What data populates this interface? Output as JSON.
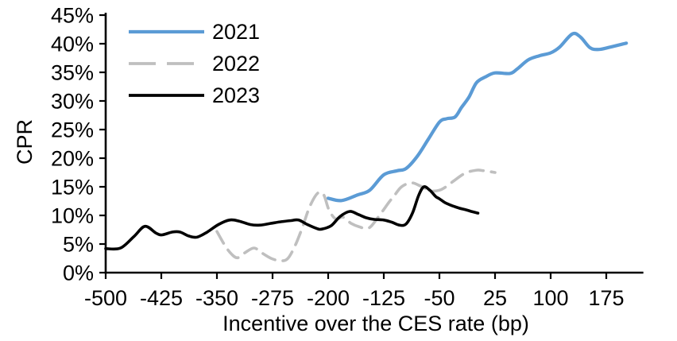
{
  "chart_data": {
    "type": "line",
    "title": "",
    "xlabel": "Incentive over the CES rate (bp)",
    "ylabel": "CPR",
    "xlim": [
      -500,
      225
    ],
    "ylim": [
      0,
      45
    ],
    "grid": false,
    "legend_position": "top-left-inside",
    "x_ticks": [
      -500,
      -425,
      -350,
      -275,
      -200,
      -125,
      -50,
      25,
      100,
      175
    ],
    "x_tick_labels": [
      "-500",
      "-425",
      "-350",
      "-275",
      "-200",
      "-125",
      "-50",
      "25",
      "100",
      "175"
    ],
    "y_ticks": [
      0,
      5,
      10,
      15,
      20,
      25,
      30,
      35,
      40,
      45
    ],
    "y_tick_labels": [
      "0%",
      "5%",
      "10%",
      "15%",
      "20%",
      "25%",
      "30%",
      "35%",
      "40%",
      "45%"
    ],
    "axis_color": "#000000",
    "series": [
      {
        "name": "2021",
        "color": "#5B9BD5",
        "style": "solid",
        "x": [
          -200,
          -182,
          -160,
          -144,
          -125,
          -107,
          -95,
          -80,
          -65,
          -50,
          -40,
          -29,
          -20,
          -10,
          0,
          12,
          25,
          45,
          55,
          70,
          85,
          100,
          112,
          129,
          140,
          153,
          165,
          180,
          202
        ],
        "y": [
          13.0,
          12.6,
          13.6,
          14.4,
          17.1,
          17.8,
          18.2,
          20.3,
          23.3,
          26.3,
          26.9,
          27.2,
          28.9,
          30.7,
          33.2,
          34.2,
          34.9,
          34.8,
          35.6,
          37.2,
          37.9,
          38.4,
          39.4,
          41.7,
          41.2,
          39.3,
          39.0,
          39.4,
          40.1
        ]
      },
      {
        "name": "2022",
        "color": "#BFBFBF",
        "style": "dashed",
        "x": [
          -350,
          -339,
          -330,
          -322,
          -312,
          -300,
          -290,
          -277,
          -265,
          -255,
          -245,
          -235,
          -225,
          -214,
          -206,
          -199,
          -190,
          -180,
          -169,
          -158,
          -145,
          -132,
          -118,
          -110,
          -101,
          -88,
          -75,
          -62,
          -50,
          -40,
          -30,
          -15,
          0,
          10,
          25
        ],
        "y": [
          7.2,
          4.7,
          3.2,
          2.6,
          3.5,
          4.3,
          3.5,
          2.5,
          2.1,
          2.4,
          4.6,
          7.8,
          11.5,
          13.9,
          13.6,
          11.0,
          9.4,
          9.7,
          8.6,
          8.0,
          7.8,
          9.8,
          12.3,
          13.6,
          15.0,
          15.7,
          15.1,
          14.3,
          14.4,
          15.1,
          16.1,
          17.4,
          17.9,
          17.8,
          17.5
        ]
      },
      {
        "name": "2023",
        "color": "#000000",
        "style": "solid",
        "x": [
          -500,
          -480,
          -462,
          -447,
          -432,
          -424,
          -410,
          -400,
          -388,
          -377,
          -363,
          -348,
          -333,
          -320,
          -305,
          -292,
          -278,
          -263,
          -250,
          -240,
          -228,
          -215,
          -209,
          -196,
          -184,
          -171,
          -160,
          -149,
          -138,
          -125,
          -114,
          -104,
          -95,
          -86,
          -78,
          -71,
          -63,
          -55,
          -50,
          -42,
          -33,
          -24,
          -15,
          -7,
          2
        ],
        "y": [
          4.2,
          4.3,
          6.3,
          8.1,
          6.9,
          6.6,
          7.1,
          7.1,
          6.4,
          6.2,
          7.1,
          8.4,
          9.2,
          9.0,
          8.4,
          8.3,
          8.6,
          8.9,
          9.1,
          9.2,
          8.4,
          7.7,
          7.6,
          8.2,
          9.8,
          10.7,
          10.2,
          9.6,
          9.3,
          9.2,
          8.8,
          8.3,
          8.5,
          10.5,
          13.5,
          15.0,
          14.4,
          13.3,
          12.9,
          12.2,
          11.7,
          11.3,
          11.0,
          10.7,
          10.4
        ]
      }
    ]
  }
}
